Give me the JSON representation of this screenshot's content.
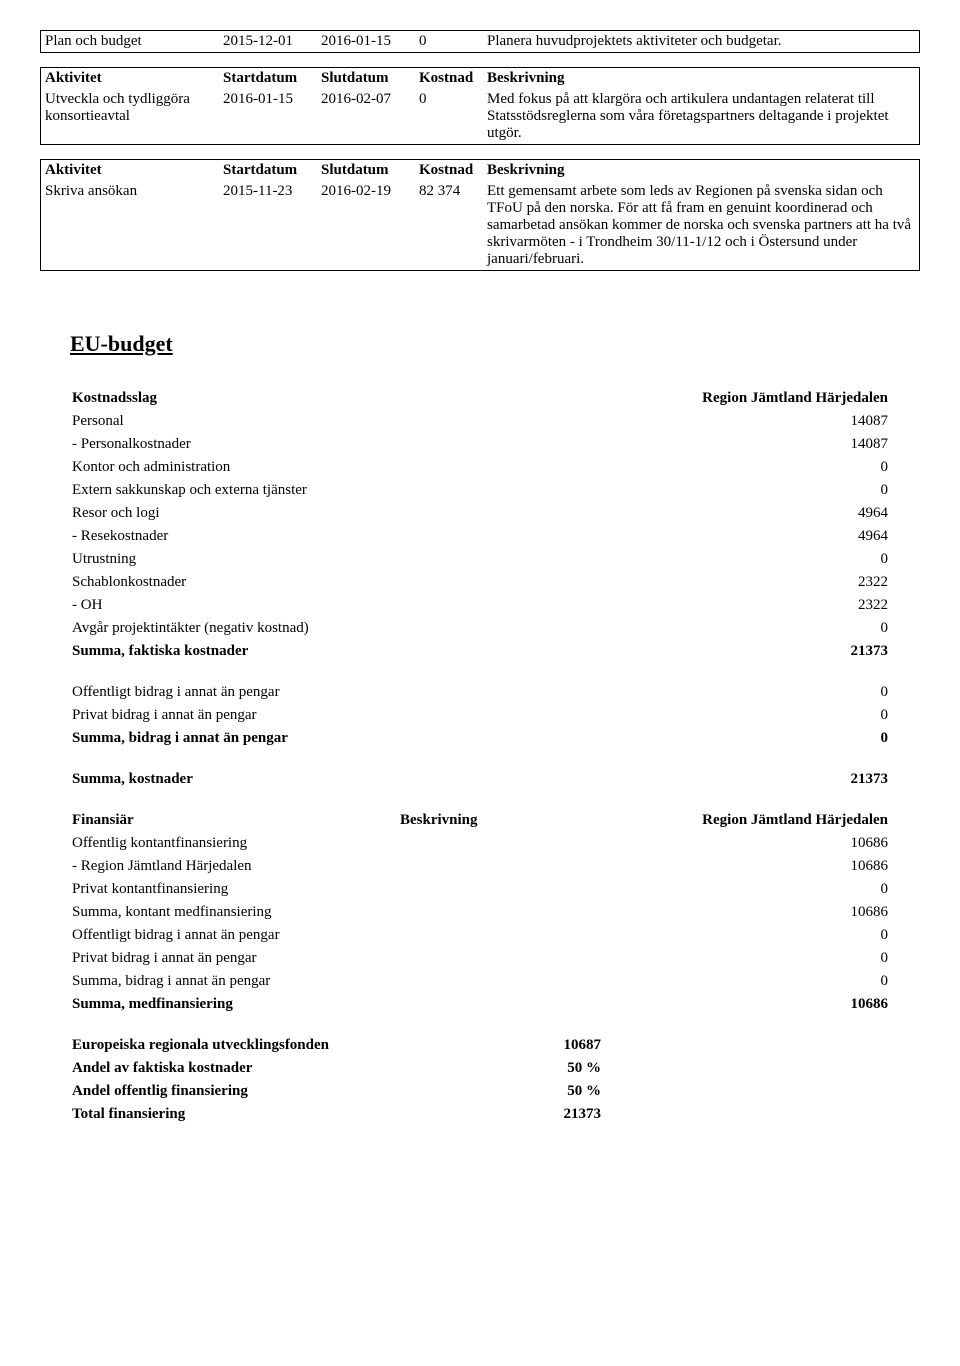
{
  "activities": [
    {
      "header": null,
      "name": "Plan och budget",
      "start": "2015-12-01",
      "end": "2016-01-15",
      "cost": "0",
      "desc": "Planera huvudprojektets aktiviteter och budgetar."
    },
    {
      "header": {
        "c0": "Aktivitet",
        "c1": "Startdatum",
        "c2": "Slutdatum",
        "c3": "Kostnad",
        "c4": "Beskrivning"
      },
      "name": "Utveckla och tydliggöra konsortieavtal",
      "start": "2016-01-15",
      "end": "2016-02-07",
      "cost": "0",
      "desc": "Med fokus på att klargöra och artikulera undantagen relaterat till Statsstödsreglerna som våra företagspartners deltagande i projektet utgör."
    },
    {
      "header": {
        "c0": "Aktivitet",
        "c1": "Startdatum",
        "c2": "Slutdatum",
        "c3": "Kostnad",
        "c4": "Beskrivning"
      },
      "name": "Skriva ansökan",
      "start": "2015-11-23",
      "end": "2016-02-19",
      "cost": "82 374",
      "desc": "Ett gemensamt arbete som leds av Regionen på svenska sidan och TFoU på den norska. För att få fram en genuint koordinerad och samarbetad ansökan kommer de norska och svenska partners att ha två skrivarmöten - i Trondheim 30/11-1/12 och i Östersund under januari/februari."
    }
  ],
  "budget": {
    "section_title": "EU-budget",
    "kostnadsslag": {
      "header_left": "Kostnadsslag",
      "header_right": "Region Jämtland Härjedalen",
      "rows": [
        {
          "label": "Personal",
          "value": "14087",
          "indent": false,
          "bold": false
        },
        {
          "label": "- Personalkostnader",
          "value": "14087",
          "indent": true,
          "bold": false
        },
        {
          "label": "Kontor och administration",
          "value": "0",
          "indent": false,
          "bold": false
        },
        {
          "label": "Extern sakkunskap och externa tjänster",
          "value": "0",
          "indent": false,
          "bold": false
        },
        {
          "label": "Resor och logi",
          "value": "4964",
          "indent": false,
          "bold": false
        },
        {
          "label": "- Resekostnader",
          "value": "4964",
          "indent": true,
          "bold": false
        },
        {
          "label": "Utrustning",
          "value": "0",
          "indent": false,
          "bold": false
        },
        {
          "label": "Schablonkostnader",
          "value": "2322",
          "indent": false,
          "bold": false
        },
        {
          "label": "- OH",
          "value": "2322",
          "indent": true,
          "bold": false
        },
        {
          "label": "Avgår projektintäkter (negativ kostnad)",
          "value": "0",
          "indent": false,
          "bold": false
        },
        {
          "label": "Summa, faktiska kostnader",
          "value": "21373",
          "indent": false,
          "bold": true
        }
      ]
    },
    "bidrag": {
      "rows": [
        {
          "label": "Offentligt bidrag i annat än pengar",
          "value": "0",
          "bold": false
        },
        {
          "label": "Privat bidrag i annat än pengar",
          "value": "0",
          "bold": false
        },
        {
          "label": "Summa, bidrag i annat än pengar",
          "value": "0",
          "bold": true
        }
      ]
    },
    "summa_kostnader": {
      "label": "Summa, kostnader",
      "value": "21373"
    },
    "finansiar": {
      "h_left": "Finansiär",
      "h_mid": "Beskrivning",
      "h_right": "Region Jämtland Härjedalen",
      "rows": [
        {
          "label": "Offentlig kontantfinansiering",
          "mid": "",
          "value": "10686",
          "indent": false,
          "bold": false
        },
        {
          "label": "- Region Jämtland Härjedalen",
          "mid": "",
          "value": "10686",
          "indent": true,
          "bold": false
        },
        {
          "label": "Privat kontantfinansiering",
          "mid": "",
          "value": "0",
          "indent": false,
          "bold": false
        },
        {
          "label": "Summa, kontant medfinansiering",
          "mid": "",
          "value": "10686",
          "indent": false,
          "bold": false
        },
        {
          "label": "Offentligt bidrag i annat än pengar",
          "mid": "",
          "value": "0",
          "indent": false,
          "bold": false
        },
        {
          "label": "Privat bidrag i annat än pengar",
          "mid": "",
          "value": "0",
          "indent": false,
          "bold": false
        },
        {
          "label": "Summa, bidrag i annat än pengar",
          "mid": "",
          "value": "0",
          "indent": false,
          "bold": false
        },
        {
          "label": "Summa, medfinansiering",
          "mid": "",
          "value": "10686",
          "indent": false,
          "bold": true
        }
      ]
    },
    "totals": {
      "rows": [
        {
          "label": "Europeiska regionala utvecklingsfonden",
          "value": "10687",
          "bold": true
        },
        {
          "label": "Andel av faktiska kostnader",
          "value": "50 %",
          "bold": true
        },
        {
          "label": "Andel offentlig finansiering",
          "value": "50 %",
          "bold": true
        },
        {
          "label": "Total finansiering",
          "value": "21373",
          "bold": true
        }
      ]
    }
  }
}
